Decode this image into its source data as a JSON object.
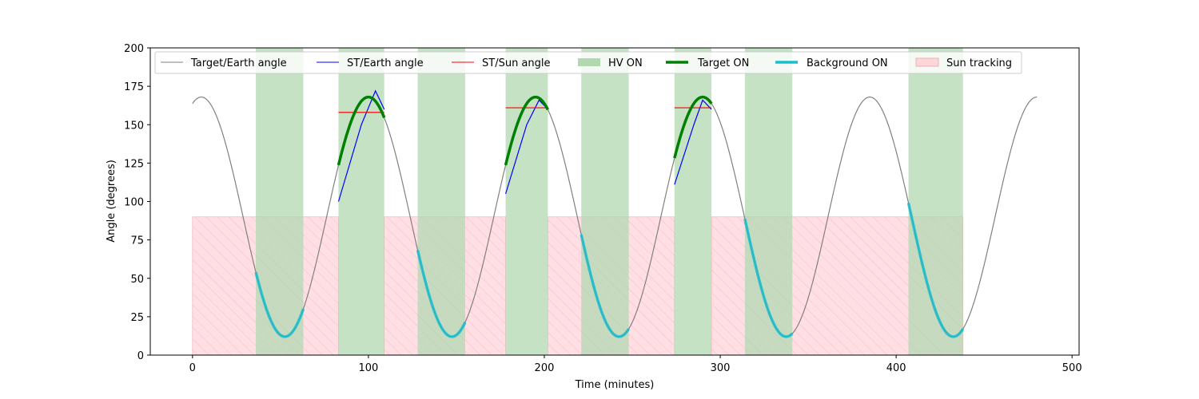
{
  "chart_data": {
    "type": "line",
    "title": "",
    "xlabel": "Time (minutes)",
    "ylabel": "Angle (degrees)",
    "xlim": [
      -24,
      504
    ],
    "ylim": [
      0,
      200
    ],
    "x_ticks": [
      0,
      100,
      200,
      300,
      400,
      500
    ],
    "y_ticks": [
      0,
      25,
      50,
      75,
      100,
      125,
      150,
      175,
      200
    ],
    "grid": false,
    "legend_position": "top (horizontal)",
    "colors": {
      "target_earth": "#808080",
      "st_earth": "#0000ff",
      "st_sun": "#ff0000",
      "hv_on": "#b2d8b2",
      "target_on": "#008000",
      "background_on": "#17becf",
      "sun_tracking": "#ffc0c8"
    },
    "legend": {
      "target_earth": "Target/Earth angle",
      "st_earth": "ST/Earth angle",
      "st_sun": "ST/Sun angle",
      "hv_on": "HV ON",
      "target_on": "Target ON",
      "background_on": "Background ON",
      "sun_tracking": "Sun tracking"
    },
    "target_earth_angle": {
      "x_range": [
        0,
        480
      ],
      "period_minutes": 95,
      "min": 12,
      "max": 168,
      "peak_times": [
        5,
        100,
        195,
        288,
        381,
        476
      ],
      "trough_times": [
        52,
        147,
        242,
        335,
        428
      ],
      "x": [
        0,
        5,
        28,
        52,
        76,
        100,
        124,
        147,
        171,
        195,
        218,
        242,
        265,
        288,
        311,
        335,
        358,
        381,
        404,
        428,
        452,
        476,
        480
      ],
      "y": [
        157,
        168,
        92,
        12,
        92,
        168,
        92,
        12,
        92,
        168,
        92,
        12,
        92,
        168,
        92,
        12,
        92,
        168,
        92,
        12,
        92,
        168,
        160
      ]
    },
    "hv_on_intervals": [
      [
        36,
        63
      ],
      [
        83,
        109
      ],
      [
        128,
        155
      ],
      [
        178,
        202
      ],
      [
        221,
        248
      ],
      [
        274,
        295
      ],
      [
        314,
        341
      ],
      [
        407,
        438
      ]
    ],
    "target_on_intervals": [
      [
        83,
        109
      ],
      [
        178,
        202
      ],
      [
        274,
        295
      ]
    ],
    "background_on_intervals": [
      [
        36,
        63
      ],
      [
        128,
        155
      ],
      [
        221,
        248
      ],
      [
        314,
        341
      ],
      [
        407,
        438
      ]
    ],
    "st_earth_angle": [
      {
        "x": [
          83,
          96,
          104,
          109
        ],
        "y": [
          100,
          150,
          172,
          160
        ]
      },
      {
        "x": [
          178,
          190,
          197,
          202
        ],
        "y": [
          105,
          150,
          166,
          160
        ]
      },
      {
        "x": [
          274,
          285,
          290,
          295
        ],
        "y": [
          111,
          150,
          166,
          160
        ]
      }
    ],
    "st_sun_angle": [
      {
        "x": [
          83,
          109
        ],
        "y": [
          158,
          158
        ]
      },
      {
        "x": [
          178,
          202
        ],
        "y": [
          161,
          161
        ]
      },
      {
        "x": [
          274,
          295
        ],
        "y": [
          161,
          161
        ]
      }
    ],
    "sun_tracking_intervals": [
      [
        0,
        83
      ],
      [
        109,
        178
      ],
      [
        202,
        274
      ],
      [
        295,
        438
      ]
    ],
    "sun_tracking_level": 90
  }
}
